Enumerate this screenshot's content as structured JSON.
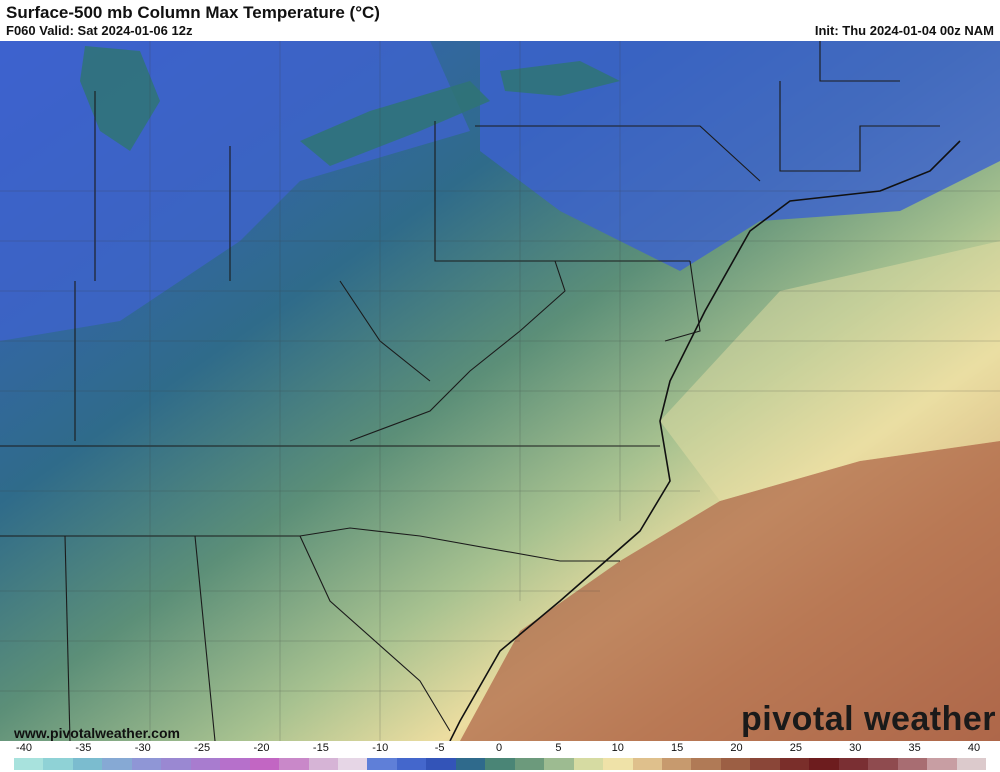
{
  "header": {
    "title": "Surface-500 mb Column Max Temperature (°C)",
    "valid": "F060 Valid: Sat 2024-01-06 12z",
    "init": "Init: Thu 2024-01-04 00z NAM"
  },
  "footer": {
    "website": "www.pivotalweather.com",
    "brand": "pivotal weather"
  },
  "colorbar": {
    "ticks": [
      "-40",
      "-35",
      "-30",
      "-25",
      "-20",
      "-15",
      "-10",
      "-5",
      "0",
      "5",
      "10",
      "15",
      "20",
      "25",
      "30",
      "35",
      "40"
    ],
    "colors": [
      "#a8e2dd",
      "#8fd2d6",
      "#7bbccf",
      "#86a9d4",
      "#8f96d6",
      "#9a88d2",
      "#a87ccf",
      "#b670cb",
      "#c266c3",
      "#c988c9",
      "#d6b4d6",
      "#e6d6e6",
      "#5f7fd8",
      "#4467cc",
      "#3354b8",
      "#2f6a8c",
      "#4a8576",
      "#6c9a7c",
      "#9dbb91",
      "#d6dba2",
      "#efe2a8",
      "#dfc08c",
      "#c79a6e",
      "#b07a56",
      "#9c5f44",
      "#8a4638",
      "#7a2e2a",
      "#6d1c1e",
      "#7a2f33",
      "#8f4b4f",
      "#a86d72",
      "#c89ea3",
      "#dccacc"
    ]
  }
}
